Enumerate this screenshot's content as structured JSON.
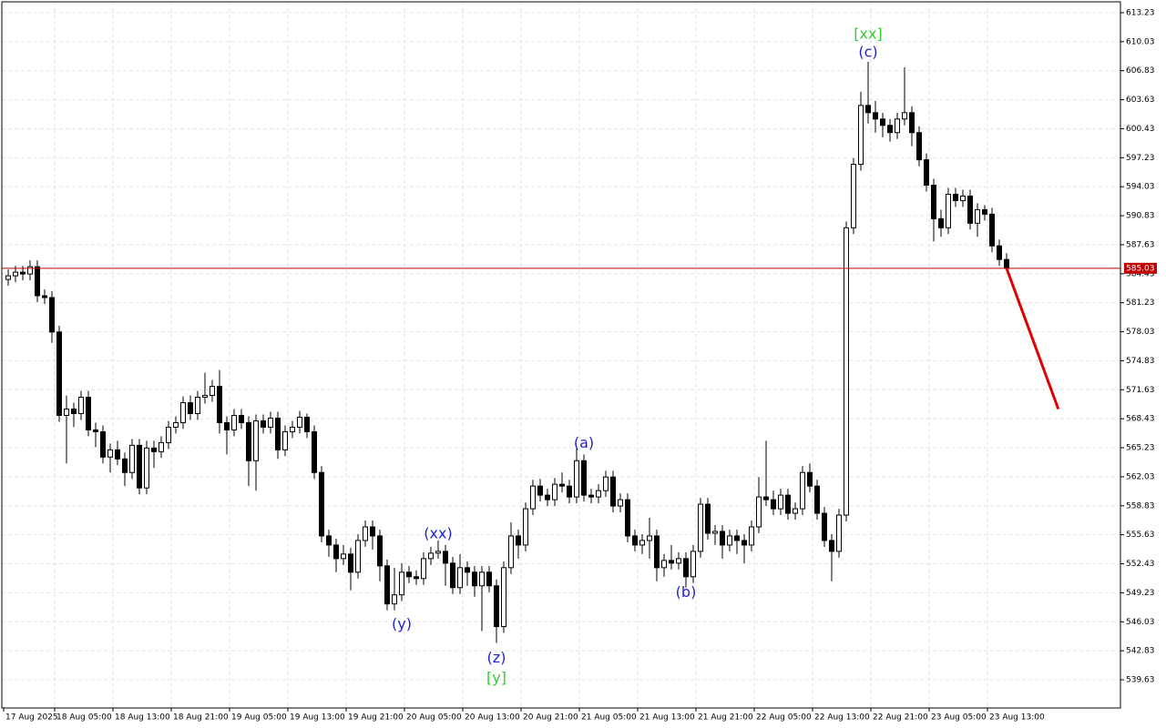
{
  "chart_data": {
    "type": "candlestick",
    "categories": [
      "17 Aug 2025",
      null,
      null,
      null,
      null,
      null,
      null,
      "18 Aug 05:00",
      null,
      null,
      null,
      null,
      null,
      null,
      null,
      "18 Aug 13:00",
      null,
      null,
      null,
      null,
      null,
      null,
      null,
      "18 Aug 21:00",
      null,
      null,
      null,
      null,
      null,
      null,
      null,
      "19 Aug 05:00",
      null,
      null,
      null,
      null,
      null,
      null,
      null,
      "19 Aug 13:00",
      null,
      null,
      null,
      null,
      null,
      null,
      null,
      "19 Aug 21:00",
      null,
      null,
      null,
      null,
      null,
      null,
      null,
      "20 Aug 05:00",
      null,
      null,
      null,
      null,
      null,
      null,
      null,
      "20 Aug 13:00",
      null,
      null,
      null,
      null,
      null,
      null,
      null,
      "20 Aug 21:00",
      null,
      null,
      null,
      null,
      null,
      null,
      null,
      "21 Aug 05:00",
      null,
      null,
      null,
      null,
      null,
      null,
      null,
      "21 Aug 13:00",
      null,
      null,
      null,
      null,
      null,
      null,
      null,
      "21 Aug 21:00",
      null,
      null,
      null,
      null,
      null,
      null,
      null,
      "22 Aug 05:00",
      null,
      null,
      null,
      null,
      null,
      null,
      null,
      "22 Aug 13:00",
      null,
      null,
      null,
      null,
      null,
      null,
      null,
      "22 Aug 21:00",
      null,
      null,
      null,
      null,
      null,
      null,
      null,
      "23 Aug 05:00",
      null,
      null,
      null,
      null,
      null,
      null,
      null,
      "23 Aug 13:00",
      null,
      null
    ],
    "open": [
      583.8,
      584.2,
      584.6,
      584.4,
      585.2,
      582.0,
      581.8,
      578.0,
      568.8,
      569.5,
      569.0,
      570.8,
      567.2,
      567.0,
      564.2,
      565.0,
      564.0,
      562.5,
      565.5,
      560.8,
      565.2,
      564.8,
      565.8,
      567.5,
      568.0,
      570.2,
      569.0,
      570.8,
      571.0,
      572.0,
      568.0,
      567.2,
      568.8,
      568.0,
      563.8,
      568.2,
      567.5,
      568.5,
      565.0,
      567.0,
      567.5,
      568.6,
      567.0,
      562.5,
      555.5,
      554.5,
      553.0,
      553.5,
      551.5,
      555.0,
      556.5,
      555.5,
      552.2,
      548.0,
      549.0,
      551.5,
      551.0,
      550.8,
      553.0,
      553.6,
      553.8,
      552.5,
      549.8,
      552.0,
      551.5,
      550.0,
      551.5,
      550.0,
      545.5,
      552.0,
      555.5,
      554.5,
      558.5,
      561.0,
      560.0,
      559.5,
      561.2,
      561.0,
      559.8,
      563.8,
      560.0,
      559.8,
      560.5,
      562.0,
      558.8,
      559.5,
      555.5,
      554.5,
      555.0,
      555.5,
      552.0,
      552.8,
      552.5,
      553.0,
      551.0,
      553.8,
      559.0,
      555.8,
      556.0,
      554.5,
      555.5,
      555.0,
      554.5,
      556.5,
      559.8,
      559.5,
      558.5,
      560.0,
      558.0,
      558.5,
      562.5,
      561.0,
      558.0,
      555.0,
      553.8,
      557.8,
      589.5,
      596.5,
      603.0,
      602.2,
      601.5,
      600.8,
      600.0,
      601.5,
      602.2,
      600.0,
      597.0,
      594.2,
      590.5,
      589.5,
      593.2,
      592.5,
      593.0,
      590.0,
      591.5,
      591.0,
      587.5,
      586.0
    ],
    "high": [
      584.9,
      585.3,
      585.3,
      585.9,
      585.9,
      582.7,
      582.5,
      578.7,
      571.0,
      570.2,
      571.5,
      571.5,
      568.0,
      567.7,
      565.7,
      566.0,
      564.7,
      566.2,
      566.2,
      566.0,
      566.0,
      566.5,
      568.2,
      568.7,
      570.9,
      571.0,
      571.5,
      573.5,
      572.7,
      573.8,
      568.7,
      569.5,
      569.5,
      568.7,
      568.9,
      568.9,
      569.2,
      569.2,
      567.7,
      568.2,
      569.3,
      569.0,
      567.7,
      563.2,
      556.2,
      555.2,
      554.5,
      554.2,
      555.7,
      557.2,
      557.2,
      556.2,
      552.9,
      552.0,
      552.5,
      552.2,
      551.7,
      553.7,
      554.3,
      555.0,
      554.5,
      553.2,
      553.5,
      552.7,
      552.2,
      552.2,
      552.2,
      550.7,
      552.7,
      557.0,
      556.2,
      559.2,
      561.7,
      561.8,
      560.7,
      561.9,
      562.5,
      561.7,
      565.2,
      564.5,
      560.7,
      561.2,
      562.7,
      562.7,
      560.2,
      560.2,
      556.2,
      555.7,
      557.5,
      556.2,
      553.5,
      554.5,
      553.7,
      553.7,
      554.5,
      559.7,
      559.7,
      556.7,
      556.7,
      556.2,
      556.2,
      555.7,
      557.2,
      562.0,
      566.0,
      560.5,
      560.7,
      560.7,
      559.2,
      563.2,
      563.5,
      561.7,
      558.7,
      555.7,
      558.5,
      590.2,
      597.2,
      604.5,
      607.8,
      603.5,
      602.2,
      601.5,
      602.2,
      607.2,
      602.9,
      600.7,
      597.7,
      594.9,
      591.5,
      593.9,
      593.9,
      593.7,
      593.7,
      592.2,
      592.0,
      591.7,
      588.2,
      586.7
    ],
    "low": [
      583.1,
      583.5,
      583.7,
      583.7,
      581.3,
      581.1,
      576.8,
      568.1,
      563.5,
      567.5,
      568.3,
      566.5,
      565.3,
      563.5,
      562.5,
      563.3,
      561.0,
      561.8,
      560.1,
      560.1,
      563.0,
      564.1,
      565.1,
      566.8,
      567.3,
      568.3,
      568.3,
      570.1,
      570.3,
      566.8,
      564.5,
      566.5,
      567.3,
      561.0,
      560.5,
      566.8,
      566.8,
      564.0,
      564.3,
      566.3,
      566.8,
      566.3,
      561.8,
      554.8,
      553.2,
      551.5,
      552.3,
      549.5,
      550.8,
      554.3,
      554.0,
      550.5,
      547.3,
      547.3,
      548.3,
      550.3,
      550.1,
      550.1,
      552.3,
      553.0,
      550.0,
      549.1,
      549.1,
      550.0,
      548.8,
      545.0,
      549.3,
      543.7,
      544.8,
      551.3,
      553.0,
      553.8,
      557.8,
      559.3,
      558.8,
      558.8,
      560.3,
      559.1,
      559.1,
      559.3,
      559.1,
      559.1,
      559.8,
      558.1,
      558.1,
      554.8,
      553.8,
      553.5,
      553.0,
      550.5,
      551.0,
      551.8,
      551.8,
      549.8,
      550.3,
      553.1,
      555.1,
      554.5,
      553.0,
      553.8,
      553.5,
      552.5,
      553.8,
      555.8,
      558.8,
      557.8,
      557.8,
      557.3,
      557.3,
      557.8,
      560.3,
      557.3,
      554.3,
      550.5,
      553.1,
      557.1,
      588.8,
      595.8,
      601.0,
      600.0,
      599.5,
      599.0,
      599.3,
      600.8,
      598.5,
      596.3,
      593.5,
      588.0,
      588.5,
      588.8,
      591.8,
      591.8,
      589.3,
      588.5,
      590.3,
      586.8,
      585.3,
      584.8
    ],
    "close": [
      584.2,
      584.6,
      584.4,
      585.2,
      582.0,
      581.8,
      578.0,
      568.8,
      569.5,
      569.0,
      570.8,
      567.2,
      567.0,
      564.2,
      565.0,
      564.0,
      562.5,
      565.5,
      560.8,
      565.2,
      564.8,
      565.8,
      567.5,
      568.0,
      570.2,
      569.0,
      570.8,
      571.0,
      572.0,
      568.0,
      567.2,
      568.8,
      568.0,
      563.8,
      568.2,
      567.5,
      568.5,
      565.0,
      567.0,
      567.5,
      568.6,
      567.0,
      562.5,
      555.5,
      554.5,
      553.0,
      553.5,
      551.5,
      555.0,
      556.5,
      555.5,
      552.2,
      548.0,
      549.0,
      551.5,
      551.0,
      550.8,
      553.0,
      553.6,
      553.8,
      552.5,
      549.8,
      552.0,
      551.5,
      550.0,
      551.5,
      550.0,
      545.5,
      552.0,
      555.5,
      554.5,
      558.5,
      561.0,
      560.0,
      559.5,
      561.2,
      561.0,
      559.8,
      563.8,
      560.0,
      559.8,
      560.5,
      562.0,
      558.8,
      559.5,
      555.5,
      554.5,
      555.0,
      555.5,
      552.0,
      552.8,
      552.5,
      553.0,
      551.0,
      553.8,
      559.0,
      555.8,
      556.0,
      554.5,
      555.5,
      555.0,
      554.5,
      556.5,
      559.8,
      559.5,
      558.5,
      560.0,
      558.0,
      558.5,
      562.5,
      561.0,
      558.0,
      555.0,
      553.8,
      557.8,
      589.5,
      596.5,
      603.0,
      602.2,
      601.5,
      600.8,
      600.0,
      601.5,
      602.2,
      600.0,
      597.0,
      594.2,
      590.5,
      589.5,
      593.2,
      592.5,
      593.0,
      590.0,
      591.5,
      591.0,
      587.5,
      586.0,
      585.03
    ],
    "up_color": "#ffffff",
    "down_color": "#000000",
    "outline_color": "#000000",
    "ylim": [
      536.52,
      614.43
    ],
    "yticks": [
      613.23,
      610.03,
      606.83,
      603.63,
      600.43,
      597.23,
      594.03,
      590.83,
      587.63,
      584.43,
      581.23,
      578.03,
      574.83,
      571.63,
      568.43,
      565.23,
      562.03,
      558.83,
      555.63,
      552.43,
      549.23,
      546.03,
      542.83,
      539.63
    ],
    "grid": true,
    "current_price": 585.03,
    "current_price_color": "#c00000",
    "forecast": {
      "x": [
        137,
        144.1
      ],
      "values": [
        585.03,
        569.5
      ],
      "color": "#e00000"
    },
    "annotations": [
      {
        "text": "[xx]",
        "color": "#32cd32",
        "x": 118,
        "y": 610.8
      },
      {
        "text": "(c)",
        "color": "#1f1fd0",
        "x": 118,
        "y": 608.8
      },
      {
        "text": "(a)",
        "color": "#1f1fd0",
        "x": 79,
        "y": 565.7
      },
      {
        "text": "(xx)",
        "color": "#1f1fd0",
        "x": 59,
        "y": 555.7
      },
      {
        "text": "(y)",
        "color": "#1f1fd0",
        "x": 54,
        "y": 545.7
      },
      {
        "text": "(b)",
        "color": "#1f1fd0",
        "x": 93,
        "y": 549.2
      },
      {
        "text": "(z)",
        "color": "#1f1fd0",
        "x": 67,
        "y": 542.0
      },
      {
        "text": "[y]",
        "color": "#32cd32",
        "x": 67,
        "y": 539.8
      }
    ]
  }
}
